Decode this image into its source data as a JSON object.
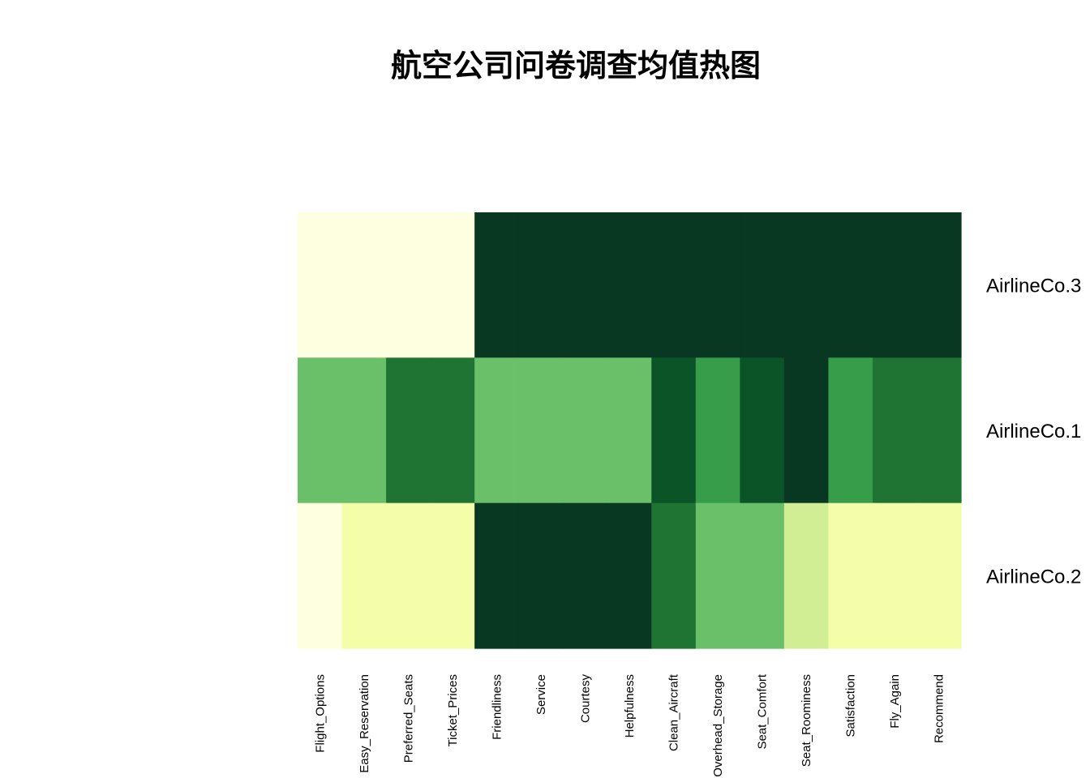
{
  "chart_data": {
    "type": "heatmap",
    "title": "航空公司问卷调查均值热图",
    "columns": [
      "Flight_Options",
      "Easy_Reservation",
      "Preferred_Seats",
      "Ticket_Prices",
      "Friendliness",
      "Service",
      "Courtesy",
      "Helpfulness",
      "Clean_Aircraft",
      "Overhead_Storage",
      "Seat_Comfort",
      "Seat_Roominess",
      "Satisfaction",
      "Fly_Again",
      "Recommend"
    ],
    "rows": [
      "AirlineCo.3",
      "AirlineCo.1",
      "AirlineCo.2"
    ],
    "values": [
      [
        0,
        0,
        0,
        0,
        8,
        8,
        8,
        8,
        8,
        8,
        8,
        8,
        8,
        8,
        8
      ],
      [
        4,
        4,
        6,
        6,
        4,
        4,
        4,
        4,
        7,
        5,
        7,
        8,
        5,
        6,
        6
      ],
      [
        0,
        1,
        1,
        1,
        8,
        8,
        8,
        8,
        6,
        4,
        4,
        2,
        1,
        1,
        1
      ]
    ],
    "value_scale": "relative rank (0 = lowest, 8 = highest)",
    "colormap": [
      "#ffffe5",
      "#f7fcb9",
      "#d9f0a3",
      "#addd8e",
      "#78c679",
      "#41ab5d",
      "#238443",
      "#006837",
      "#004529"
    ],
    "colors": [
      "#feffe0",
      "#f4fda8",
      "#d2ee94",
      "#a9d98a",
      "#6abf69",
      "#389d4b",
      "#1f7433",
      "#0b5428",
      "#083722"
    ],
    "legend": "none",
    "grid": false
  }
}
